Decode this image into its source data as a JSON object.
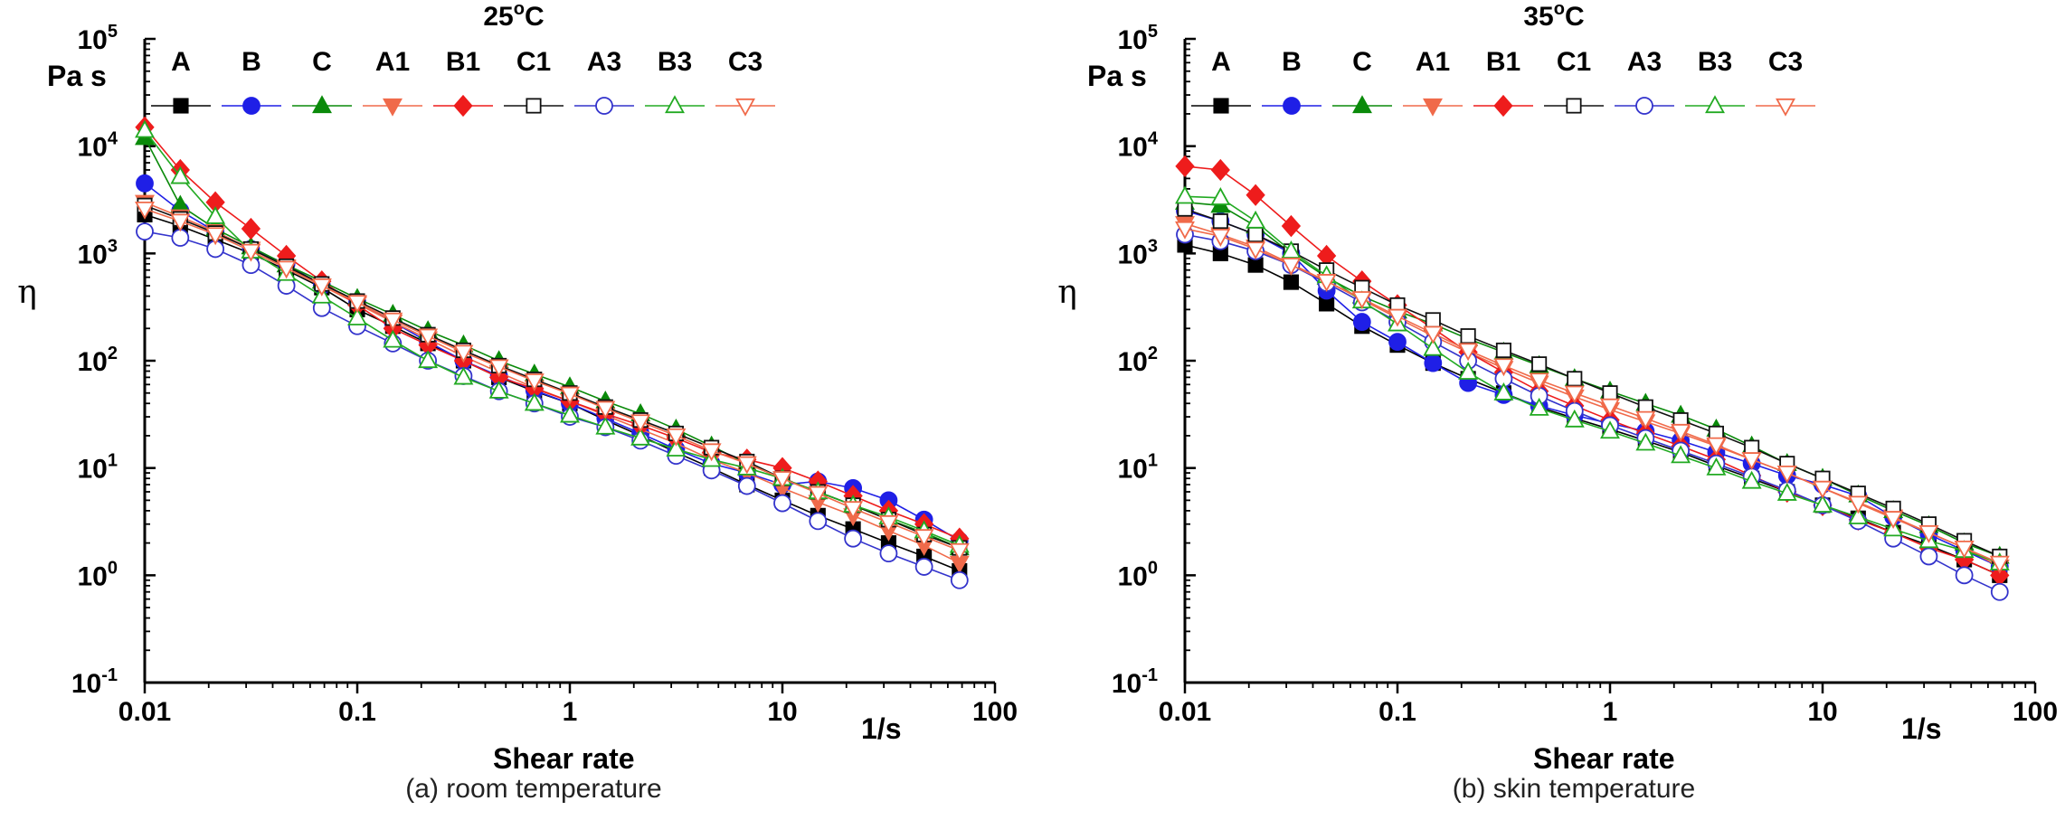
{
  "chart_data": [
    {
      "type": "line",
      "panel": "a",
      "title": "25",
      "title_unit": "C",
      "title_degree": "o",
      "caption": "(a) room temperature",
      "xlabel": "Shear rate",
      "xunit": "1/s",
      "ylabel": "η",
      "yunit": "Pa s",
      "xscale": "log",
      "yscale": "log",
      "xlim": [
        0.01,
        100
      ],
      "ylim": [
        0.1,
        100000
      ],
      "x_ticks": [
        0.01,
        0.1,
        1,
        10,
        100
      ],
      "x_tick_labels": [
        "0.01",
        "0.1",
        "1",
        "10",
        "100"
      ],
      "y_ticks": [
        0.1,
        1,
        10,
        100,
        1000,
        10000,
        100000
      ],
      "y_tick_base": "10",
      "y_tick_exponents": [
        "-1",
        "0",
        "1",
        "2",
        "3",
        "4",
        "5"
      ],
      "legend_position": "top",
      "x": [
        0.01,
        0.0147,
        0.0215,
        0.0316,
        0.0464,
        0.0681,
        0.1,
        0.147,
        0.215,
        0.316,
        0.464,
        0.681,
        1,
        1.47,
        2.15,
        3.16,
        4.64,
        6.81,
        10,
        14.7,
        21.5,
        31.6,
        46.4,
        68.1
      ],
      "series": [
        {
          "name": "A",
          "color": "#000000",
          "marker": "square",
          "filled": true,
          "values": [
            2300,
            1800,
            1350,
            1000,
            700,
            480,
            300,
            210,
            145,
            100,
            70,
            52,
            40,
            28,
            20,
            14,
            10,
            7,
            5,
            3.6,
            2.7,
            2,
            1.5,
            1.1
          ]
        },
        {
          "name": "B",
          "color": "#1f1fe6",
          "marker": "circle",
          "filled": true,
          "values": [
            4500,
            2500,
            1600,
            1100,
            800,
            500,
            350,
            230,
            150,
            100,
            72,
            53,
            40,
            29,
            21,
            15,
            11,
            9,
            7,
            7.5,
            6.5,
            5,
            3.3,
            2.1
          ]
        },
        {
          "name": "C",
          "color": "#0a8a0a",
          "marker": "triangle",
          "filled": true,
          "values": [
            12000,
            2800,
            1700,
            1150,
            780,
            550,
            380,
            270,
            190,
            140,
            100,
            75,
            57,
            42,
            32,
            23,
            16,
            11,
            8,
            6,
            4.5,
            3.3,
            2.5,
            1.8
          ]
        },
        {
          "name": "A1",
          "color": "#f06a4a",
          "marker": "triangle-down",
          "filled": true,
          "values": [
            3000,
            2200,
            1600,
            1100,
            750,
            500,
            340,
            230,
            160,
            110,
            78,
            56,
            42,
            31,
            23,
            17,
            12,
            9,
            6.5,
            4.8,
            3.6,
            2.6,
            1.9,
            1.3
          ]
        },
        {
          "name": "B1",
          "color": "#ee1c1c",
          "marker": "diamond",
          "filled": true,
          "values": [
            15000,
            6000,
            3000,
            1700,
            950,
            550,
            330,
            200,
            140,
            100,
            70,
            55,
            42,
            32,
            25,
            19,
            14,
            12,
            10,
            7.5,
            5.5,
            4,
            3,
            2.2
          ]
        },
        {
          "name": "C1",
          "color": "#111111",
          "marker": "square",
          "filled": false,
          "values": [
            2800,
            2100,
            1550,
            1100,
            760,
            520,
            360,
            250,
            175,
            125,
            90,
            67,
            50,
            37,
            28,
            21,
            15.5,
            11.5,
            8,
            6,
            4.5,
            3.3,
            2.4,
            1.8
          ]
        },
        {
          "name": "A3",
          "color": "#3333cc",
          "marker": "circle",
          "filled": false,
          "values": [
            1600,
            1400,
            1100,
            780,
            500,
            310,
            210,
            145,
            100,
            72,
            52,
            40,
            30,
            24,
            18,
            13,
            9.5,
            6.8,
            4.7,
            3.2,
            2.2,
            1.6,
            1.2,
            0.9
          ]
        },
        {
          "name": "B3",
          "color": "#22aa22",
          "marker": "triangle",
          "filled": false,
          "values": [
            14000,
            5200,
            2200,
            1050,
            650,
            400,
            250,
            155,
            100,
            70,
            52,
            40,
            31,
            24,
            19,
            15,
            12,
            10,
            8,
            6,
            4.5,
            3.5,
            2.6,
            1.9
          ]
        },
        {
          "name": "C3",
          "color": "#f06a4a",
          "marker": "triangle-down",
          "filled": false,
          "values": [
            2600,
            2000,
            1500,
            1050,
            730,
            500,
            350,
            240,
            170,
            120,
            88,
            65,
            49,
            36,
            27,
            20,
            14.5,
            11,
            8,
            5.8,
            4.2,
            3.1,
            2.3,
            1.7
          ]
        }
      ]
    },
    {
      "type": "line",
      "panel": "b",
      "title": "35",
      "title_unit": "C",
      "title_degree": "o",
      "caption": "(b) skin temperature",
      "xlabel": "Shear rate",
      "xunit": "1/s",
      "ylabel": "η",
      "yunit": "Pa s",
      "xscale": "log",
      "yscale": "log",
      "xlim": [
        0.01,
        100
      ],
      "ylim": [
        0.1,
        100000
      ],
      "x_ticks": [
        0.01,
        0.1,
        1,
        10,
        100
      ],
      "x_tick_labels": [
        "0.01",
        "0.1",
        "1",
        "10",
        "100"
      ],
      "y_ticks": [
        0.1,
        1,
        10,
        100,
        1000,
        10000,
        100000
      ],
      "y_tick_base": "10",
      "y_tick_exponents": [
        "-1",
        "0",
        "1",
        "2",
        "3",
        "4",
        "5"
      ],
      "legend_position": "top",
      "x": [
        0.01,
        0.0147,
        0.0215,
        0.0316,
        0.0464,
        0.0681,
        0.1,
        0.147,
        0.215,
        0.316,
        0.464,
        0.681,
        1,
        1.47,
        2.15,
        3.16,
        4.64,
        6.81,
        10,
        14.7,
        21.5,
        31.6,
        46.4,
        68.1
      ],
      "series": [
        {
          "name": "A",
          "color": "#000000",
          "marker": "square",
          "filled": true,
          "values": [
            1200,
            1000,
            780,
            540,
            340,
            210,
            140,
            95,
            68,
            50,
            37,
            29,
            23,
            18,
            14,
            10.5,
            8,
            6,
            4.5,
            3.4,
            2.5,
            1.9,
            1.4,
            1.0
          ]
        },
        {
          "name": "B",
          "color": "#1f1fe6",
          "marker": "circle",
          "filled": true,
          "values": [
            2500,
            2000,
            1500,
            1000,
            450,
            230,
            150,
            95,
            62,
            48,
            38,
            31,
            26,
            22,
            18,
            14,
            11,
            8.5,
            7,
            5.5,
            3.5,
            2.4,
            1.7,
            1.2
          ]
        },
        {
          "name": "C",
          "color": "#0a8a0a",
          "marker": "triangle",
          "filled": true,
          "values": [
            3000,
            2800,
            1800,
            1000,
            600,
            400,
            290,
            220,
            160,
            120,
            90,
            68,
            52,
            40,
            31,
            23,
            16,
            11,
            8,
            5.6,
            4,
            2.9,
            2.0,
            1.5
          ]
        },
        {
          "name": "A1",
          "color": "#f06a4a",
          "marker": "triangle-down",
          "filled": true,
          "values": [
            1900,
            1500,
            1150,
            800,
            550,
            370,
            250,
            170,
            120,
            85,
            62,
            46,
            35,
            27,
            21,
            16,
            12,
            9,
            6.5,
            4.8,
            3.5,
            2.5,
            1.8,
            1.2
          ]
        },
        {
          "name": "B1",
          "color": "#ee1c1c",
          "marker": "diamond",
          "filled": true,
          "values": [
            6500,
            6000,
            3500,
            1800,
            950,
            550,
            330,
            200,
            120,
            78,
            52,
            38,
            28,
            21,
            16,
            12,
            8.5,
            6,
            4.5,
            3.3,
            2.5,
            1.8,
            1.4,
            1.0
          ]
        },
        {
          "name": "C1",
          "color": "#111111",
          "marker": "square",
          "filled": false,
          "values": [
            2600,
            2000,
            1500,
            1050,
            700,
            480,
            330,
            240,
            170,
            125,
            93,
            68,
            50,
            37,
            28,
            21,
            15.5,
            11,
            8,
            5.8,
            4.2,
            3,
            2.1,
            1.5
          ]
        },
        {
          "name": "A3",
          "color": "#3333cc",
          "marker": "circle",
          "filled": false,
          "values": [
            1500,
            1300,
            1050,
            780,
            530,
            350,
            230,
            150,
            100,
            68,
            47,
            34,
            25,
            19,
            14.5,
            11,
            8.3,
            6.2,
            4.5,
            3.2,
            2.2,
            1.5,
            1.0,
            0.7
          ]
        },
        {
          "name": "B3",
          "color": "#22aa22",
          "marker": "triangle",
          "filled": false,
          "values": [
            3400,
            3300,
            2000,
            1050,
            620,
            360,
            220,
            130,
            78,
            50,
            36,
            28,
            22,
            17,
            13,
            10,
            7.5,
            5.8,
            4.5,
            3.5,
            2.7,
            2.1,
            1.7,
            1.3
          ]
        },
        {
          "name": "C3",
          "color": "#f06a4a",
          "marker": "triangle-down",
          "filled": false,
          "values": [
            1700,
            1450,
            1100,
            780,
            550,
            380,
            260,
            180,
            125,
            90,
            66,
            50,
            38,
            29,
            22,
            16.5,
            12,
            9,
            6.5,
            4.7,
            3.4,
            2.5,
            1.8,
            1.3
          ]
        }
      ]
    }
  ]
}
